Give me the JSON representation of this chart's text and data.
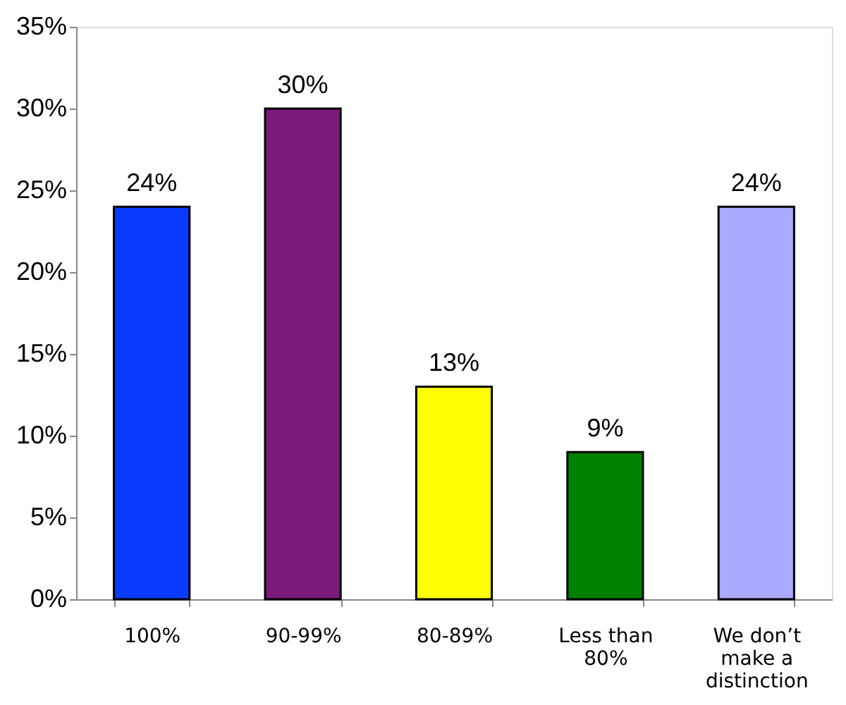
{
  "chart_data": {
    "type": "bar",
    "categories": [
      "100%",
      "90-99%",
      "80-89%",
      "Less than 80%",
      "We don’t make a distinction"
    ],
    "values": [
      24,
      30,
      13,
      9,
      24
    ],
    "colors": [
      "#0a3cff",
      "#7b1a7b",
      "#ffff00",
      "#008000",
      "#aaaaff"
    ],
    "value_labels": [
      "24%",
      "30%",
      "13%",
      "9%",
      "24%"
    ],
    "ylim": [
      0,
      35
    ],
    "yticks": [
      {
        "value": 0,
        "label": "0%"
      },
      {
        "value": 5,
        "label": "5%"
      },
      {
        "value": 10,
        "label": "10%"
      },
      {
        "value": 15,
        "label": "15%"
      },
      {
        "value": 20,
        "label": "20%"
      },
      {
        "value": 25,
        "label": "25%"
      },
      {
        "value": 30,
        "label": "30%"
      },
      {
        "value": 35,
        "label": "35%"
      }
    ],
    "grid": false
  }
}
